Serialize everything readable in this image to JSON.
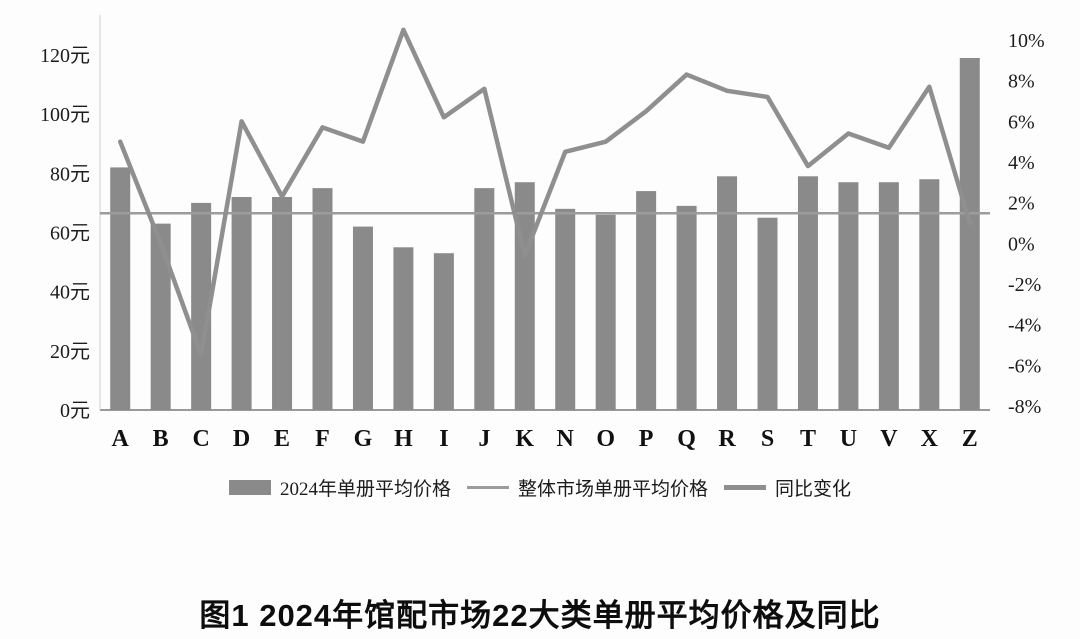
{
  "title": "图1 2024年馆配市场22大类单册平均价格及同比",
  "chart_data": {
    "type": "bar",
    "subtype": "bar+line combo, dual axis",
    "categories": [
      "A",
      "B",
      "C",
      "D",
      "E",
      "F",
      "G",
      "H",
      "I",
      "J",
      "K",
      "N",
      "O",
      "P",
      "Q",
      "R",
      "S",
      "T",
      "U",
      "V",
      "X",
      "Z"
    ],
    "series": [
      {
        "name": "2024年单册平均价格",
        "type": "bar",
        "axis": "left",
        "unit": "元",
        "values": [
          82,
          63,
          70,
          72,
          72,
          75,
          62,
          55,
          53,
          75,
          77,
          68,
          66,
          74,
          69,
          79,
          65,
          79,
          77,
          77,
          78,
          119
        ]
      },
      {
        "name": "整体市场单册平均价格",
        "type": "hline",
        "axis": "left",
        "unit": "元",
        "value": 66.5
      },
      {
        "name": "同比变化",
        "type": "line",
        "axis": "right",
        "unit": "%",
        "values": [
          5,
          0,
          -5.5,
          6,
          2.3,
          5.7,
          5,
          10.5,
          6.2,
          7.6,
          -0.6,
          4.5,
          5,
          6.5,
          8.3,
          7.5,
          7.2,
          3.8,
          5.4,
          4.7,
          7.7,
          1
        ]
      }
    ],
    "left_axis": {
      "min": 0,
      "max": 120,
      "ticks": [
        "0元",
        "20元",
        "40元",
        "60元",
        "80元",
        "100元",
        "120元"
      ]
    },
    "right_axis": {
      "min": -8,
      "max": 10,
      "ticks": [
        "-8%",
        "-6%",
        "-4%",
        "-2%",
        "0%",
        "2%",
        "4%",
        "6%",
        "8%",
        "10%"
      ]
    },
    "legend": [
      "2024年单册平均价格",
      "整体市场单册平均价格",
      "同比变化"
    ],
    "grid": "off",
    "legend_position": "bottom-center",
    "colors": {
      "bar": "#8a8a8a",
      "market_line": "#9c9c9c",
      "yoy_line": "#8f8f8f",
      "axis": "#7a7a7a",
      "text": "#1c1c1c"
    }
  }
}
